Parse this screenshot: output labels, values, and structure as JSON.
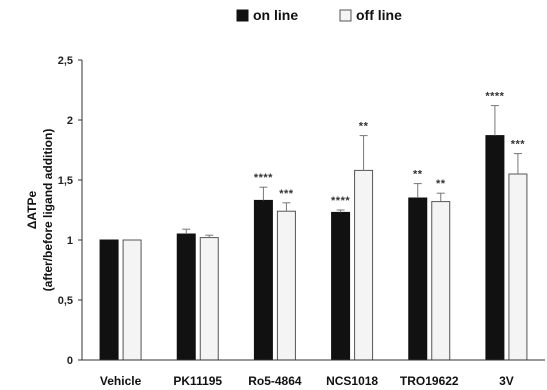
{
  "chart_data": {
    "type": "bar",
    "ylabel_line1": "ΔATPe",
    "ylabel_line2": "(after/before ligand addition)",
    "ylim": [
      0,
      2.5
    ],
    "yticks": [
      {
        "value": 0,
        "label": "0"
      },
      {
        "value": 0.5,
        "label": "0,5"
      },
      {
        "value": 1,
        "label": "1"
      },
      {
        "value": 1.5,
        "label": "1,5"
      },
      {
        "value": 2,
        "label": "2"
      },
      {
        "value": 2.5,
        "label": "2,5"
      }
    ],
    "grid": false,
    "legend_position": "top-center",
    "categories": [
      "Vehicle",
      "PK11195",
      "Ro5-4864",
      "NCS1018",
      "TRO19622",
      "3V"
    ],
    "series": [
      {
        "name": "on line",
        "color": "#111111",
        "values": [
          1.0,
          1.05,
          1.33,
          1.23,
          1.35,
          1.87
        ],
        "errors": [
          0.0,
          0.04,
          0.11,
          0.02,
          0.12,
          0.25
        ],
        "significance": [
          "",
          "",
          "****",
          "****",
          "**",
          "****"
        ]
      },
      {
        "name": "off line",
        "color": "#f4f4f4",
        "values": [
          1.0,
          1.02,
          1.24,
          1.58,
          1.32,
          1.55
        ],
        "errors": [
          0.0,
          0.02,
          0.07,
          0.29,
          0.07,
          0.17
        ],
        "significance": [
          "",
          "",
          "***",
          "**",
          "**",
          "***"
        ]
      }
    ]
  }
}
